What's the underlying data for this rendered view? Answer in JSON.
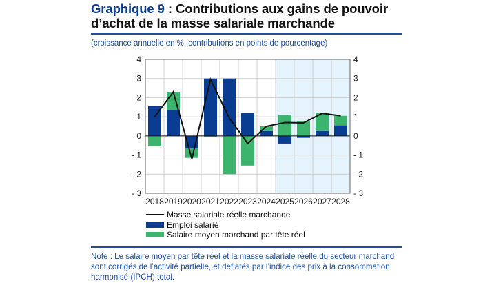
{
  "title": {
    "number": "Graphique 9",
    "text": " : Contributions aux gains de pouvoir d’achat de la masse salariale marchande"
  },
  "subtitle": "(croissance annuelle en %, contributions en points de pourcentage)",
  "note": "Note : Le salaire moyen par tête réel et la masse salariale réelle du secteur marchand sont corrigés de l’activité partielle, et déflatés par l’indice des prix à la consommation harmonisé (IPCH) total.",
  "chart_data": {
    "type": "bar",
    "stacked": true,
    "categories": [
      "2018",
      "2019",
      "2020",
      "2021",
      "2022",
      "2023",
      "2024",
      "2025",
      "2026",
      "2027",
      "2028"
    ],
    "ylim": [
      -3,
      4
    ],
    "yticks": [
      4,
      3,
      2,
      1,
      0,
      -1,
      -2,
      -3
    ],
    "ytick_labels": [
      "4",
      "3",
      "2",
      "1",
      "0",
      "- 1",
      "- 2",
      "- 3"
    ],
    "grid": true,
    "projection_shading_from": "2025",
    "legend_placement": "bottom",
    "series": [
      {
        "name": "Masse salariale réelle marchande",
        "kind": "line",
        "color": "#111111",
        "values": [
          1.0,
          2.3,
          -1.2,
          2.95,
          0.95,
          -0.4,
          0.5,
          0.7,
          0.68,
          1.18,
          1.05
        ]
      },
      {
        "name": "Emploi salarié",
        "kind": "bar",
        "color": "#0a3d91",
        "values": [
          1.55,
          1.35,
          -0.65,
          3.0,
          3.0,
          1.2,
          0.25,
          -0.4,
          -0.1,
          0.25,
          0.55
        ]
      },
      {
        "name": "Salaire moyen marchand par tête réel",
        "kind": "bar",
        "color": "#3cb46e",
        "values": [
          -0.55,
          0.95,
          -0.5,
          -0.05,
          -2.0,
          -1.55,
          0.25,
          1.1,
          0.75,
          0.95,
          0.5
        ]
      }
    ],
    "colors": {
      "shade": "#e4f3fc",
      "grid": "#cfcfcf"
    }
  }
}
